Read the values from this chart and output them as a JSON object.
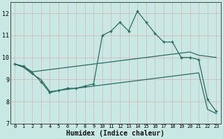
{
  "xlabel": "Humidex (Indice chaleur)",
  "xlim": [
    -0.5,
    23.5
  ],
  "ylim": [
    7,
    12.5
  ],
  "yticks": [
    7,
    8,
    9,
    10,
    11,
    12
  ],
  "xticks": [
    0,
    1,
    2,
    3,
    4,
    5,
    6,
    7,
    8,
    9,
    10,
    11,
    12,
    13,
    14,
    15,
    16,
    17,
    18,
    19,
    20,
    21,
    22,
    23
  ],
  "bg_color": "#c8e8e4",
  "grid_color": "#b8d8d4",
  "line_color": "#2a6b62",
  "marker_color": "#2a6b62",
  "line1_x": [
    0,
    1,
    2,
    3,
    4,
    5,
    6,
    7,
    8,
    9,
    10,
    11,
    12,
    13,
    14,
    15,
    16,
    17,
    18,
    19,
    20,
    21,
    22,
    23
  ],
  "line1_y": [
    9.7,
    9.6,
    9.3,
    8.9,
    8.4,
    8.5,
    8.6,
    8.6,
    8.7,
    8.8,
    11.0,
    11.2,
    11.6,
    11.2,
    12.1,
    11.6,
    11.1,
    10.7,
    10.7,
    10.0,
    10.0,
    9.9,
    8.1,
    7.55
  ],
  "line2_x": [
    0,
    1,
    2,
    3,
    4,
    5,
    6,
    7,
    8,
    9,
    10,
    11,
    12,
    13,
    14,
    15,
    16,
    17,
    18,
    19,
    20,
    21,
    22,
    23
  ],
  "line2_y": [
    9.7,
    9.6,
    9.35,
    9.4,
    9.45,
    9.5,
    9.55,
    9.6,
    9.65,
    9.7,
    9.75,
    9.8,
    9.85,
    9.9,
    9.95,
    10.0,
    10.05,
    10.1,
    10.15,
    10.2,
    10.25,
    10.1,
    10.05,
    10.0
  ],
  "line3_x": [
    0,
    1,
    2,
    3,
    4,
    5,
    6,
    7,
    8,
    9,
    10,
    11,
    12,
    13,
    14,
    15,
    16,
    17,
    18,
    19,
    20,
    21,
    22,
    23
  ],
  "line3_y": [
    9.7,
    9.55,
    9.25,
    9.0,
    8.45,
    8.5,
    8.55,
    8.6,
    8.65,
    8.7,
    8.75,
    8.8,
    8.85,
    8.9,
    8.95,
    9.0,
    9.05,
    9.1,
    9.15,
    9.2,
    9.25,
    9.3,
    7.65,
    7.45
  ]
}
